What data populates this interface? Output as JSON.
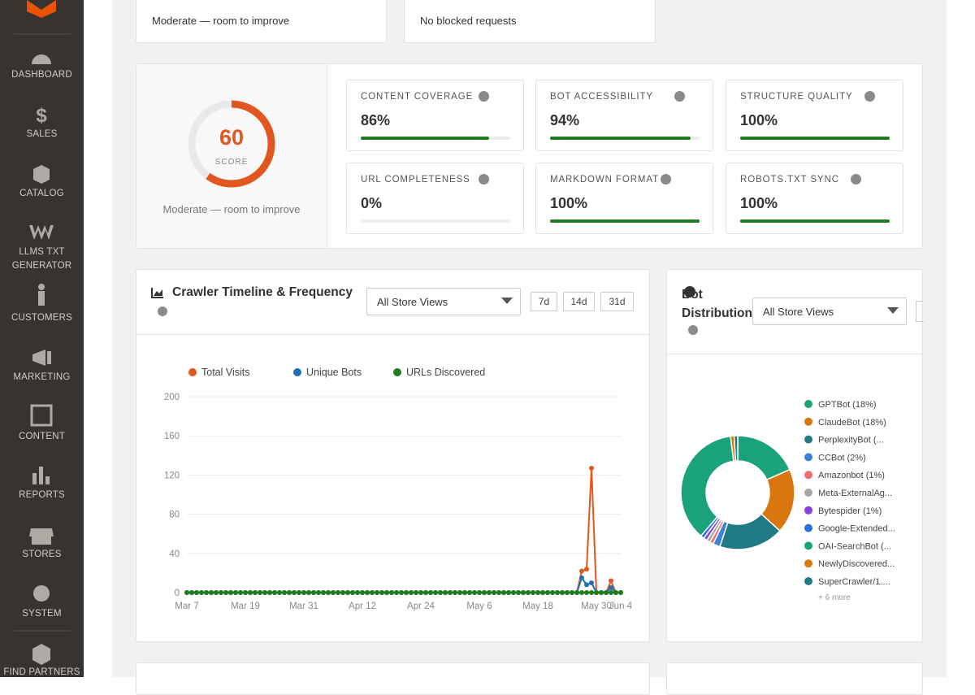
{
  "sidebar": {
    "items": [
      "DASHBOARD",
      "SALES",
      "CATALOG",
      "LLMS TXT GENERATOR",
      "CUSTOMERS",
      "MARKETING",
      "CONTENT",
      "REPORTS",
      "STORES",
      "SYSTEM",
      "FIND PARTNERS"
    ]
  },
  "top_cards": [
    "Moderate — room to improve",
    "No blocked requests"
  ],
  "score": {
    "value": 60,
    "max": 100,
    "label": "SCORE",
    "caption": "Moderate — room to improve"
  },
  "metrics": [
    {
      "label": "CONTENT COVERAGE",
      "value": 86,
      "value_label": "86%"
    },
    {
      "label": "BOT ACCESSIBILITY",
      "value": 94,
      "value_label": "94%"
    },
    {
      "label": "STRUCTURE QUALITY",
      "value": 100,
      "value_label": "100%"
    },
    {
      "label": "URL COMPLETENESS",
      "value": 0,
      "value_label": "0%"
    },
    {
      "label": "MARKDOWN FORMAT",
      "value": 100,
      "value_label": "100%"
    },
    {
      "label": "ROBOTS.TXT SYNC",
      "value": 100,
      "value_label": "100%"
    }
  ],
  "timeline_controls": {
    "store_select": "All Store Views",
    "ranges": [
      "7d",
      "14d",
      "31d"
    ]
  },
  "distribution_controls": {
    "store_select": "All Store Views"
  },
  "chart_data": [
    {
      "type": "line",
      "title": "Crawler Timeline & Frequency",
      "categories": [
        "Mar 7",
        null,
        null,
        null,
        null,
        null,
        null,
        null,
        null,
        null,
        null,
        null,
        "Mar 19",
        null,
        null,
        null,
        null,
        null,
        null,
        null,
        null,
        null,
        null,
        null,
        "Mar 31",
        null,
        null,
        null,
        null,
        null,
        null,
        null,
        null,
        null,
        null,
        null,
        "Apr 12",
        null,
        null,
        null,
        null,
        null,
        null,
        null,
        null,
        null,
        null,
        null,
        "Apr 24",
        null,
        null,
        null,
        null,
        null,
        null,
        null,
        null,
        null,
        null,
        null,
        "May 6",
        null,
        null,
        null,
        null,
        null,
        null,
        null,
        null,
        null,
        null,
        null,
        "May 18",
        null,
        null,
        null,
        null,
        null,
        null,
        null,
        null,
        null,
        null,
        null,
        "May 30",
        null,
        null,
        null,
        null,
        "Jun 4"
      ],
      "series": [
        {
          "name": "Total Visits",
          "color": "#e2561f",
          "values": [
            0,
            0,
            0,
            0,
            0,
            0,
            0,
            0,
            0,
            0,
            0,
            0,
            0,
            0,
            0,
            0,
            0,
            0,
            0,
            0,
            0,
            0,
            0,
            0,
            0,
            0,
            0,
            0,
            0,
            0,
            0,
            0,
            0,
            0,
            0,
            0,
            0,
            0,
            0,
            0,
            0,
            0,
            0,
            0,
            0,
            0,
            0,
            0,
            0,
            0,
            0,
            0,
            0,
            0,
            0,
            0,
            0,
            0,
            0,
            0,
            0,
            0,
            0,
            0,
            0,
            0,
            0,
            0,
            0,
            0,
            0,
            0,
            0,
            0,
            0,
            0,
            0,
            0,
            0,
            0,
            0,
            22,
            24,
            127,
            0,
            0,
            0,
            12,
            0,
            0
          ]
        },
        {
          "name": "Unique Bots",
          "color": "#1f6fb2",
          "values": [
            0,
            0,
            0,
            0,
            0,
            0,
            0,
            0,
            0,
            0,
            0,
            0,
            0,
            0,
            0,
            0,
            0,
            0,
            0,
            0,
            0,
            0,
            0,
            0,
            0,
            0,
            0,
            0,
            0,
            0,
            0,
            0,
            0,
            0,
            0,
            0,
            0,
            0,
            0,
            0,
            0,
            0,
            0,
            0,
            0,
            0,
            0,
            0,
            0,
            0,
            0,
            0,
            0,
            0,
            0,
            0,
            0,
            0,
            0,
            0,
            0,
            0,
            0,
            0,
            0,
            0,
            0,
            0,
            0,
            0,
            0,
            0,
            0,
            0,
            0,
            0,
            0,
            0,
            0,
            0,
            0,
            15,
            8,
            10,
            0,
            0,
            0,
            5,
            0,
            0
          ]
        },
        {
          "name": "URLs Discovered",
          "color": "#1e7b1e",
          "values": [
            0,
            0,
            0,
            0,
            0,
            0,
            0,
            0,
            0,
            0,
            0,
            0,
            0,
            0,
            0,
            0,
            0,
            0,
            0,
            0,
            0,
            0,
            0,
            0,
            0,
            0,
            0,
            0,
            0,
            0,
            0,
            0,
            0,
            0,
            0,
            0,
            0,
            0,
            0,
            0,
            0,
            0,
            0,
            0,
            0,
            0,
            0,
            0,
            0,
            0,
            0,
            0,
            0,
            0,
            0,
            0,
            0,
            0,
            0,
            0,
            0,
            0,
            0,
            0,
            0,
            0,
            0,
            0,
            0,
            0,
            0,
            0,
            0,
            0,
            0,
            0,
            0,
            0,
            0,
            0,
            0,
            0,
            0,
            0,
            0,
            0,
            0,
            0,
            0,
            0
          ]
        }
      ],
      "ylim": [
        0,
        200
      ],
      "yticks": [
        0,
        40,
        80,
        120,
        160,
        200
      ],
      "grid": true
    },
    {
      "type": "pie",
      "title": "Bot Distribution",
      "categories": [
        "GPTBot (18%)",
        "ClaudeBot (18%)",
        "PerplexityBot (...",
        "CCBot (2%)",
        "Amazonbot (1%)",
        "Meta-ExternalAg...",
        "Bytespider (1%)",
        "Google-Extended...",
        "OAI-SearchBot (...",
        "NewlyDiscovered...",
        "SuperCrawler/1...."
      ],
      "values": [
        18,
        18,
        18,
        2,
        1,
        1,
        1,
        1,
        36,
        1,
        1
      ],
      "colors": [
        "#1aa37a",
        "#d9770f",
        "#1f7a85",
        "#3b82e0",
        "#ee6d6d",
        "#a5a5a5",
        "#8a3fe0",
        "#2f6fe0",
        "#1aa37a",
        "#d9770f",
        "#1f7a85"
      ],
      "more_label": "+ 6 more"
    }
  ]
}
